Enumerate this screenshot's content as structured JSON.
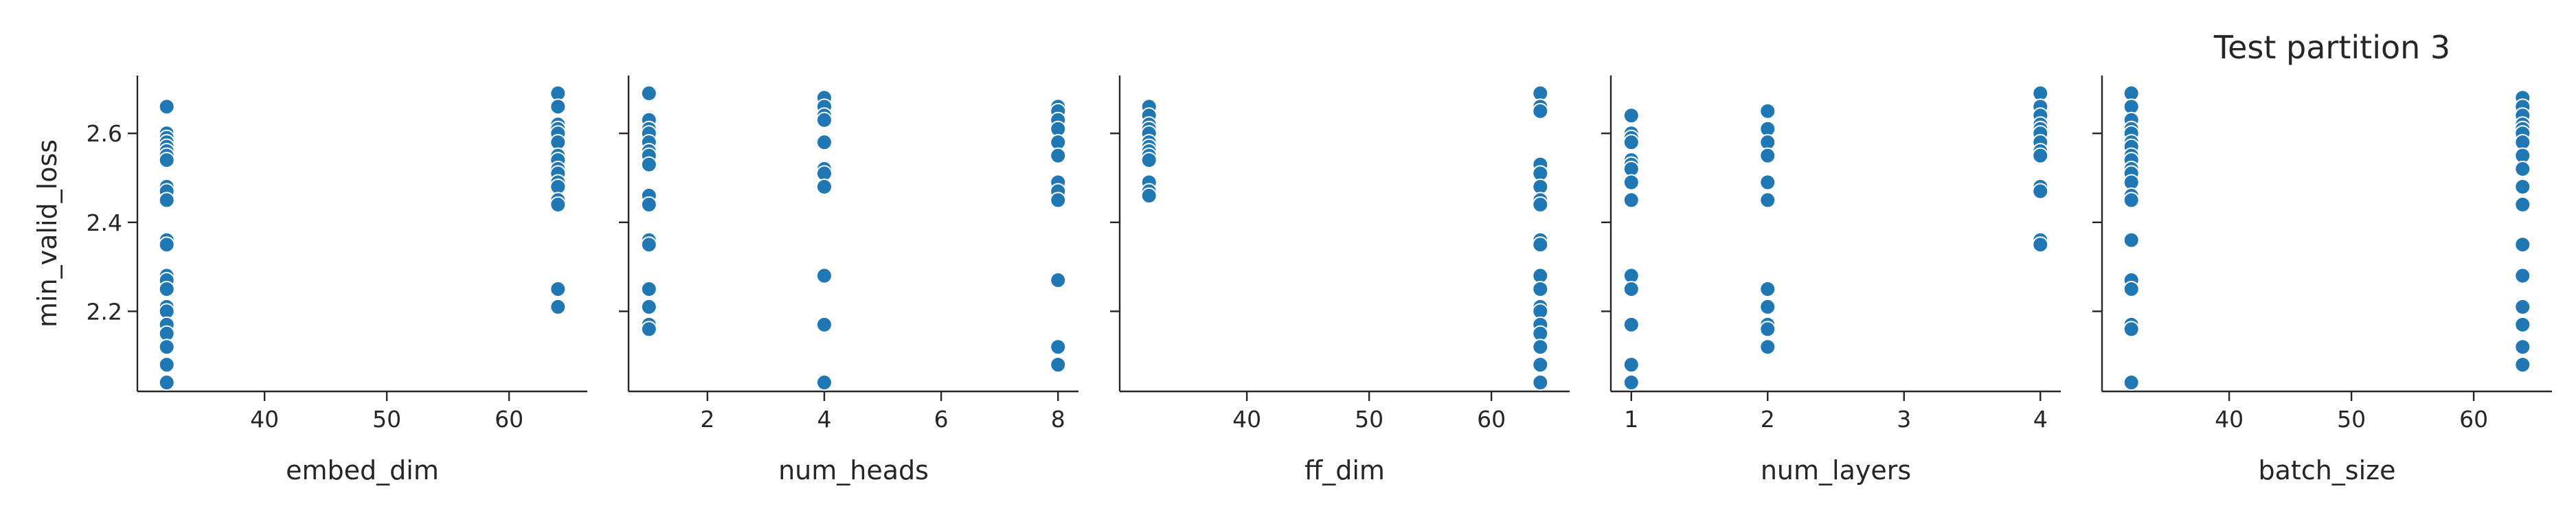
{
  "title": "Test partition 3",
  "chart_data": {
    "type": "scatter",
    "title": "Test partition 3",
    "ylabel": "min_valid_loss",
    "ylim": [
      2.02,
      2.73
    ],
    "yticks": [
      2.2,
      2.4,
      2.6
    ],
    "y_tick_labels": [
      "2.2",
      "2.4",
      "2.6"
    ],
    "panels": [
      {
        "xlabel": "embed_dim",
        "xlim": [
          29.6,
          66.4
        ],
        "xticks": [
          40,
          50,
          60
        ],
        "x_tick_labels": [
          "40",
          "50",
          "60"
        ],
        "points": [
          [
            32,
            2.66
          ],
          [
            32,
            2.6
          ],
          [
            32,
            2.59
          ],
          [
            32,
            2.58
          ],
          [
            32,
            2.57
          ],
          [
            32,
            2.56
          ],
          [
            32,
            2.55
          ],
          [
            32,
            2.54
          ],
          [
            32,
            2.48
          ],
          [
            32,
            2.47
          ],
          [
            32,
            2.45
          ],
          [
            32,
            2.36
          ],
          [
            32,
            2.35
          ],
          [
            32,
            2.28
          ],
          [
            32,
            2.27
          ],
          [
            32,
            2.25
          ],
          [
            32,
            2.21
          ],
          [
            32,
            2.2
          ],
          [
            32,
            2.17
          ],
          [
            32,
            2.15
          ],
          [
            32,
            2.12
          ],
          [
            32,
            2.08
          ],
          [
            32,
            2.04
          ],
          [
            64,
            2.69
          ],
          [
            64,
            2.66
          ],
          [
            64,
            2.62
          ],
          [
            64,
            2.61
          ],
          [
            64,
            2.6
          ],
          [
            64,
            2.58
          ],
          [
            64,
            2.55
          ],
          [
            64,
            2.54
          ],
          [
            64,
            2.52
          ],
          [
            64,
            2.51
          ],
          [
            64,
            2.49
          ],
          [
            64,
            2.48
          ],
          [
            64,
            2.45
          ],
          [
            64,
            2.44
          ],
          [
            64,
            2.25
          ],
          [
            64,
            2.21
          ]
        ]
      },
      {
        "xlabel": "num_heads",
        "xlim": [
          0.65,
          8.35
        ],
        "xticks": [
          2,
          4,
          6,
          8
        ],
        "x_tick_labels": [
          "2",
          "4",
          "6",
          "8"
        ],
        "points": [
          [
            1,
            2.69
          ],
          [
            1,
            2.63
          ],
          [
            1,
            2.61
          ],
          [
            1,
            2.6
          ],
          [
            1,
            2.58
          ],
          [
            1,
            2.56
          ],
          [
            1,
            2.55
          ],
          [
            1,
            2.53
          ],
          [
            1,
            2.46
          ],
          [
            1,
            2.44
          ],
          [
            1,
            2.36
          ],
          [
            1,
            2.35
          ],
          [
            1,
            2.25
          ],
          [
            1,
            2.21
          ],
          [
            1,
            2.17
          ],
          [
            1,
            2.16
          ],
          [
            4,
            2.68
          ],
          [
            4,
            2.66
          ],
          [
            4,
            2.64
          ],
          [
            4,
            2.63
          ],
          [
            4,
            2.58
          ],
          [
            4,
            2.52
          ],
          [
            4,
            2.51
          ],
          [
            4,
            2.48
          ],
          [
            4,
            2.28
          ],
          [
            4,
            2.17
          ],
          [
            4,
            2.04
          ],
          [
            8,
            2.66
          ],
          [
            8,
            2.65
          ],
          [
            8,
            2.63
          ],
          [
            8,
            2.61
          ],
          [
            8,
            2.58
          ],
          [
            8,
            2.55
          ],
          [
            8,
            2.49
          ],
          [
            8,
            2.47
          ],
          [
            8,
            2.45
          ],
          [
            8,
            2.27
          ],
          [
            8,
            2.12
          ],
          [
            8,
            2.08
          ]
        ]
      },
      {
        "xlabel": "ff_dim",
        "xlim": [
          29.6,
          66.4
        ],
        "xticks": [
          40,
          50,
          60
        ],
        "x_tick_labels": [
          "40",
          "50",
          "60"
        ],
        "points": [
          [
            32,
            2.66
          ],
          [
            32,
            2.64
          ],
          [
            32,
            2.62
          ],
          [
            32,
            2.61
          ],
          [
            32,
            2.6
          ],
          [
            32,
            2.58
          ],
          [
            32,
            2.57
          ],
          [
            32,
            2.56
          ],
          [
            32,
            2.55
          ],
          [
            32,
            2.54
          ],
          [
            32,
            2.49
          ],
          [
            32,
            2.47
          ],
          [
            32,
            2.46
          ],
          [
            64,
            2.69
          ],
          [
            64,
            2.66
          ],
          [
            64,
            2.65
          ],
          [
            64,
            2.53
          ],
          [
            64,
            2.51
          ],
          [
            64,
            2.48
          ],
          [
            64,
            2.45
          ],
          [
            64,
            2.44
          ],
          [
            64,
            2.36
          ],
          [
            64,
            2.35
          ],
          [
            64,
            2.28
          ],
          [
            64,
            2.25
          ],
          [
            64,
            2.21
          ],
          [
            64,
            2.2
          ],
          [
            64,
            2.17
          ],
          [
            64,
            2.15
          ],
          [
            64,
            2.12
          ],
          [
            64,
            2.08
          ],
          [
            64,
            2.04
          ]
        ]
      },
      {
        "xlabel": "num_layers",
        "xlim": [
          0.85,
          4.15
        ],
        "xticks": [
          1,
          2,
          3,
          4
        ],
        "x_tick_labels": [
          "1",
          "2",
          "3",
          "4"
        ],
        "points": [
          [
            1,
            2.64
          ],
          [
            1,
            2.6
          ],
          [
            1,
            2.59
          ],
          [
            1,
            2.58
          ],
          [
            1,
            2.54
          ],
          [
            1,
            2.53
          ],
          [
            1,
            2.52
          ],
          [
            1,
            2.49
          ],
          [
            1,
            2.45
          ],
          [
            1,
            2.28
          ],
          [
            1,
            2.25
          ],
          [
            1,
            2.17
          ],
          [
            1,
            2.08
          ],
          [
            1,
            2.04
          ],
          [
            2,
            2.65
          ],
          [
            2,
            2.61
          ],
          [
            2,
            2.58
          ],
          [
            2,
            2.55
          ],
          [
            2,
            2.49
          ],
          [
            2,
            2.45
          ],
          [
            2,
            2.25
          ],
          [
            2,
            2.21
          ],
          [
            2,
            2.17
          ],
          [
            2,
            2.16
          ],
          [
            2,
            2.12
          ],
          [
            4,
            2.69
          ],
          [
            4,
            2.66
          ],
          [
            4,
            2.64
          ],
          [
            4,
            2.62
          ],
          [
            4,
            2.61
          ],
          [
            4,
            2.6
          ],
          [
            4,
            2.58
          ],
          [
            4,
            2.56
          ],
          [
            4,
            2.55
          ],
          [
            4,
            2.48
          ],
          [
            4,
            2.47
          ],
          [
            4,
            2.36
          ],
          [
            4,
            2.35
          ]
        ]
      },
      {
        "xlabel": "batch_size",
        "xlim": [
          29.6,
          66.4
        ],
        "xticks": [
          40,
          50,
          60
        ],
        "x_tick_labels": [
          "40",
          "50",
          "60"
        ],
        "points": [
          [
            32,
            2.69
          ],
          [
            32,
            2.66
          ],
          [
            32,
            2.63
          ],
          [
            32,
            2.61
          ],
          [
            32,
            2.6
          ],
          [
            32,
            2.58
          ],
          [
            32,
            2.57
          ],
          [
            32,
            2.55
          ],
          [
            32,
            2.54
          ],
          [
            32,
            2.52
          ],
          [
            32,
            2.51
          ],
          [
            32,
            2.49
          ],
          [
            32,
            2.46
          ],
          [
            32,
            2.45
          ],
          [
            32,
            2.36
          ],
          [
            32,
            2.27
          ],
          [
            32,
            2.25
          ],
          [
            32,
            2.17
          ],
          [
            32,
            2.16
          ],
          [
            32,
            2.04
          ],
          [
            64,
            2.68
          ],
          [
            64,
            2.66
          ],
          [
            64,
            2.64
          ],
          [
            64,
            2.62
          ],
          [
            64,
            2.61
          ],
          [
            64,
            2.6
          ],
          [
            64,
            2.58
          ],
          [
            64,
            2.55
          ],
          [
            64,
            2.52
          ],
          [
            64,
            2.48
          ],
          [
            64,
            2.44
          ],
          [
            64,
            2.35
          ],
          [
            64,
            2.28
          ],
          [
            64,
            2.21
          ],
          [
            64,
            2.17
          ],
          [
            64,
            2.12
          ],
          [
            64,
            2.08
          ]
        ]
      }
    ],
    "grid": false,
    "legend": "none",
    "colors": {
      "points": "#1f77b4",
      "point_edge": "#ffffff",
      "axes": "#262626"
    }
  }
}
